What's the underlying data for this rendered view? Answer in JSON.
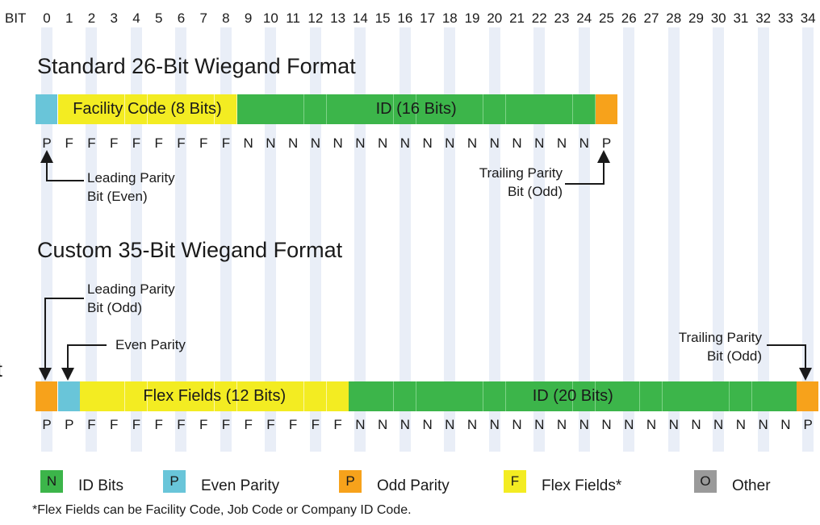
{
  "bit_header": "BIT",
  "bit_numbers": [
    "0",
    "1",
    "2",
    "3",
    "4",
    "5",
    "6",
    "7",
    "8",
    "9",
    "10",
    "11",
    "12",
    "13",
    "14",
    "15",
    "16",
    "17",
    "18",
    "19",
    "20",
    "21",
    "22",
    "23",
    "24",
    "25",
    "26",
    "27",
    "28",
    "29",
    "30",
    "31",
    "32",
    "33",
    "34"
  ],
  "colors": {
    "id": "#3cb54a",
    "even_parity": "#69c5d9",
    "odd_parity": "#f7a21b",
    "flex": "#f3ec22",
    "other": "#9a9a9a",
    "stripe": "#e9eef7"
  },
  "standard": {
    "title": "Standard 26-Bit Wiegand Format",
    "bit_types": [
      "P",
      "F",
      "F",
      "F",
      "F",
      "F",
      "F",
      "F",
      "F",
      "N",
      "N",
      "N",
      "N",
      "N",
      "N",
      "N",
      "N",
      "N",
      "N",
      "N",
      "N",
      "N",
      "N",
      "N",
      "N",
      "P"
    ],
    "cell_kinds": [
      "even",
      "flex",
      "flex",
      "flex",
      "flex",
      "flex",
      "flex",
      "flex",
      "flex",
      "id",
      "id",
      "id",
      "id",
      "id",
      "id",
      "id",
      "id",
      "id",
      "id",
      "id",
      "id",
      "id",
      "id",
      "id",
      "id",
      "odd"
    ],
    "field_labels": {
      "flex": "Facility Code (8 Bits)",
      "id": "ID (16 Bits)"
    },
    "notes": {
      "leading": [
        "Leading Parity",
        "Bit (Even)"
      ],
      "trailing": [
        "Trailing Parity",
        "Bit (Odd)"
      ]
    }
  },
  "custom": {
    "title": "Custom 35-Bit Wiegand Format",
    "bit_types": [
      "P",
      "P",
      "F",
      "F",
      "F",
      "F",
      "F",
      "F",
      "F",
      "F",
      "F",
      "F",
      "F",
      "F",
      "N",
      "N",
      "N",
      "N",
      "N",
      "N",
      "N",
      "N",
      "N",
      "N",
      "N",
      "N",
      "N",
      "N",
      "N",
      "N",
      "N",
      "N",
      "N",
      "N",
      "P"
    ],
    "cell_kinds": [
      "odd",
      "even",
      "flex",
      "flex",
      "flex",
      "flex",
      "flex",
      "flex",
      "flex",
      "flex",
      "flex",
      "flex",
      "flex",
      "flex",
      "id",
      "id",
      "id",
      "id",
      "id",
      "id",
      "id",
      "id",
      "id",
      "id",
      "id",
      "id",
      "id",
      "id",
      "id",
      "id",
      "id",
      "id",
      "id",
      "id",
      "odd"
    ],
    "field_labels": {
      "flex": "Flex Fields (12 Bits)",
      "id": "ID (20 Bits)"
    },
    "notes": {
      "leading": [
        "Leading Parity",
        "Bit (Odd)"
      ],
      "even": [
        "Even Parity"
      ],
      "trailing": [
        "Trailing Parity",
        "Bit (Odd)"
      ]
    }
  },
  "legend": [
    {
      "letter": "N",
      "label": "ID Bits",
      "kind": "id"
    },
    {
      "letter": "P",
      "label": "Even Parity",
      "kind": "even"
    },
    {
      "letter": "P",
      "label": "Odd Parity",
      "kind": "odd"
    },
    {
      "letter": "F",
      "label": "Flex Fields*",
      "kind": "flex"
    },
    {
      "letter": "O",
      "label": "Other",
      "kind": "other"
    }
  ],
  "footnote": "*Flex Fields can be Facility Code, Job Code or Company ID Code.",
  "edge_fragment": "t"
}
